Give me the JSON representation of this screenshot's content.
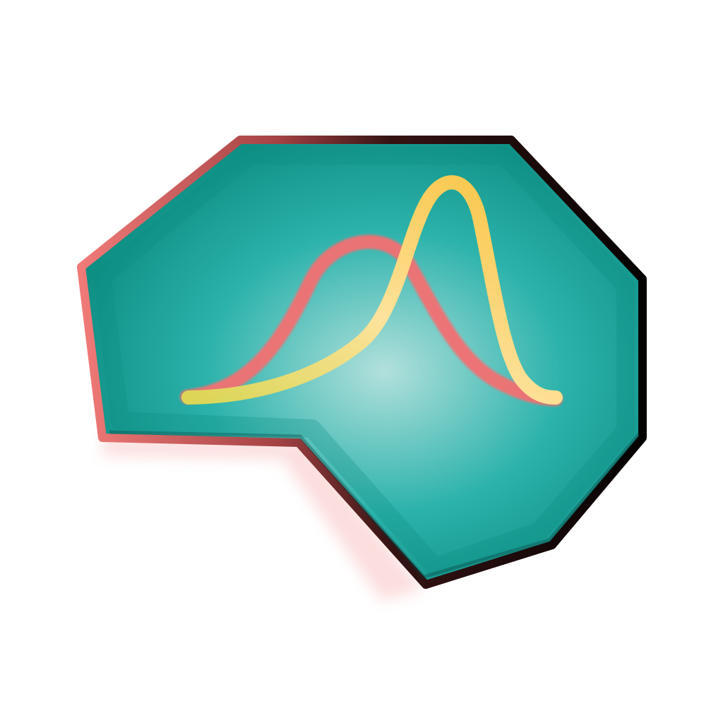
{
  "icon": {
    "name": "distribution-curves-app-icon",
    "colors": {
      "background": "#ffffff",
      "panel_fill_light": "#b2e0dc",
      "panel_fill_mid": "#2bb2ab",
      "panel_fill_dark": "#0d8d82",
      "panel_border_red": "#f07a78",
      "panel_border_dark": "#120909",
      "curve_wide": "#f36f72",
      "curve_peak": "#ffc53f",
      "curve_peak_light": "#ffe5a0"
    }
  }
}
